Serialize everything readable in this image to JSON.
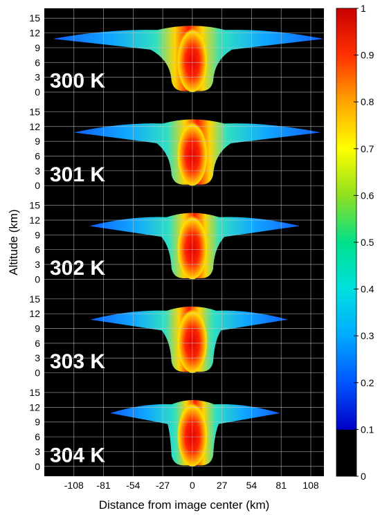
{
  "chart_data": {
    "type": "heatmap",
    "xlabel": "Distance from image center (km)",
    "ylabel": "Altitude (km)",
    "x_ticks": [
      -108,
      -81,
      -54,
      -27,
      0,
      27,
      54,
      81,
      108
    ],
    "xlim": [
      -135,
      120
    ],
    "y_ticks": [
      0,
      3,
      6,
      9,
      12,
      15
    ],
    "ylim": [
      -2,
      17
    ],
    "panels": [
      {
        "label": "300 K",
        "anvil_halfwidth_left_km": 127,
        "anvil_halfwidth_right_km": 120
      },
      {
        "label": "301 K",
        "anvil_halfwidth_left_km": 108,
        "anvil_halfwidth_right_km": 117
      },
      {
        "label": "302 K",
        "anvil_halfwidth_left_km": 94,
        "anvil_halfwidth_right_km": 98
      },
      {
        "label": "303 K",
        "anvil_halfwidth_left_km": 93,
        "anvil_halfwidth_right_km": 87
      },
      {
        "label": "304 K",
        "anvil_halfwidth_left_km": 75,
        "anvil_halfwidth_right_km": 80
      }
    ],
    "colorbar": {
      "ticks": [
        "0",
        "0.1",
        "0.2",
        "0.3",
        "0.4",
        "0.5",
        "0.6",
        "0.7",
        "0.8",
        "0.9",
        "1"
      ],
      "range": [
        0,
        1
      ],
      "colormap": [
        "#000000",
        "#0000c8",
        "#0055ff",
        "#00aaff",
        "#00e0e0",
        "#00e08a",
        "#90e020",
        "#ffff00",
        "#ffa500",
        "#ff3000",
        "#c80000"
      ]
    },
    "grid": true,
    "background_color": "#000000"
  }
}
